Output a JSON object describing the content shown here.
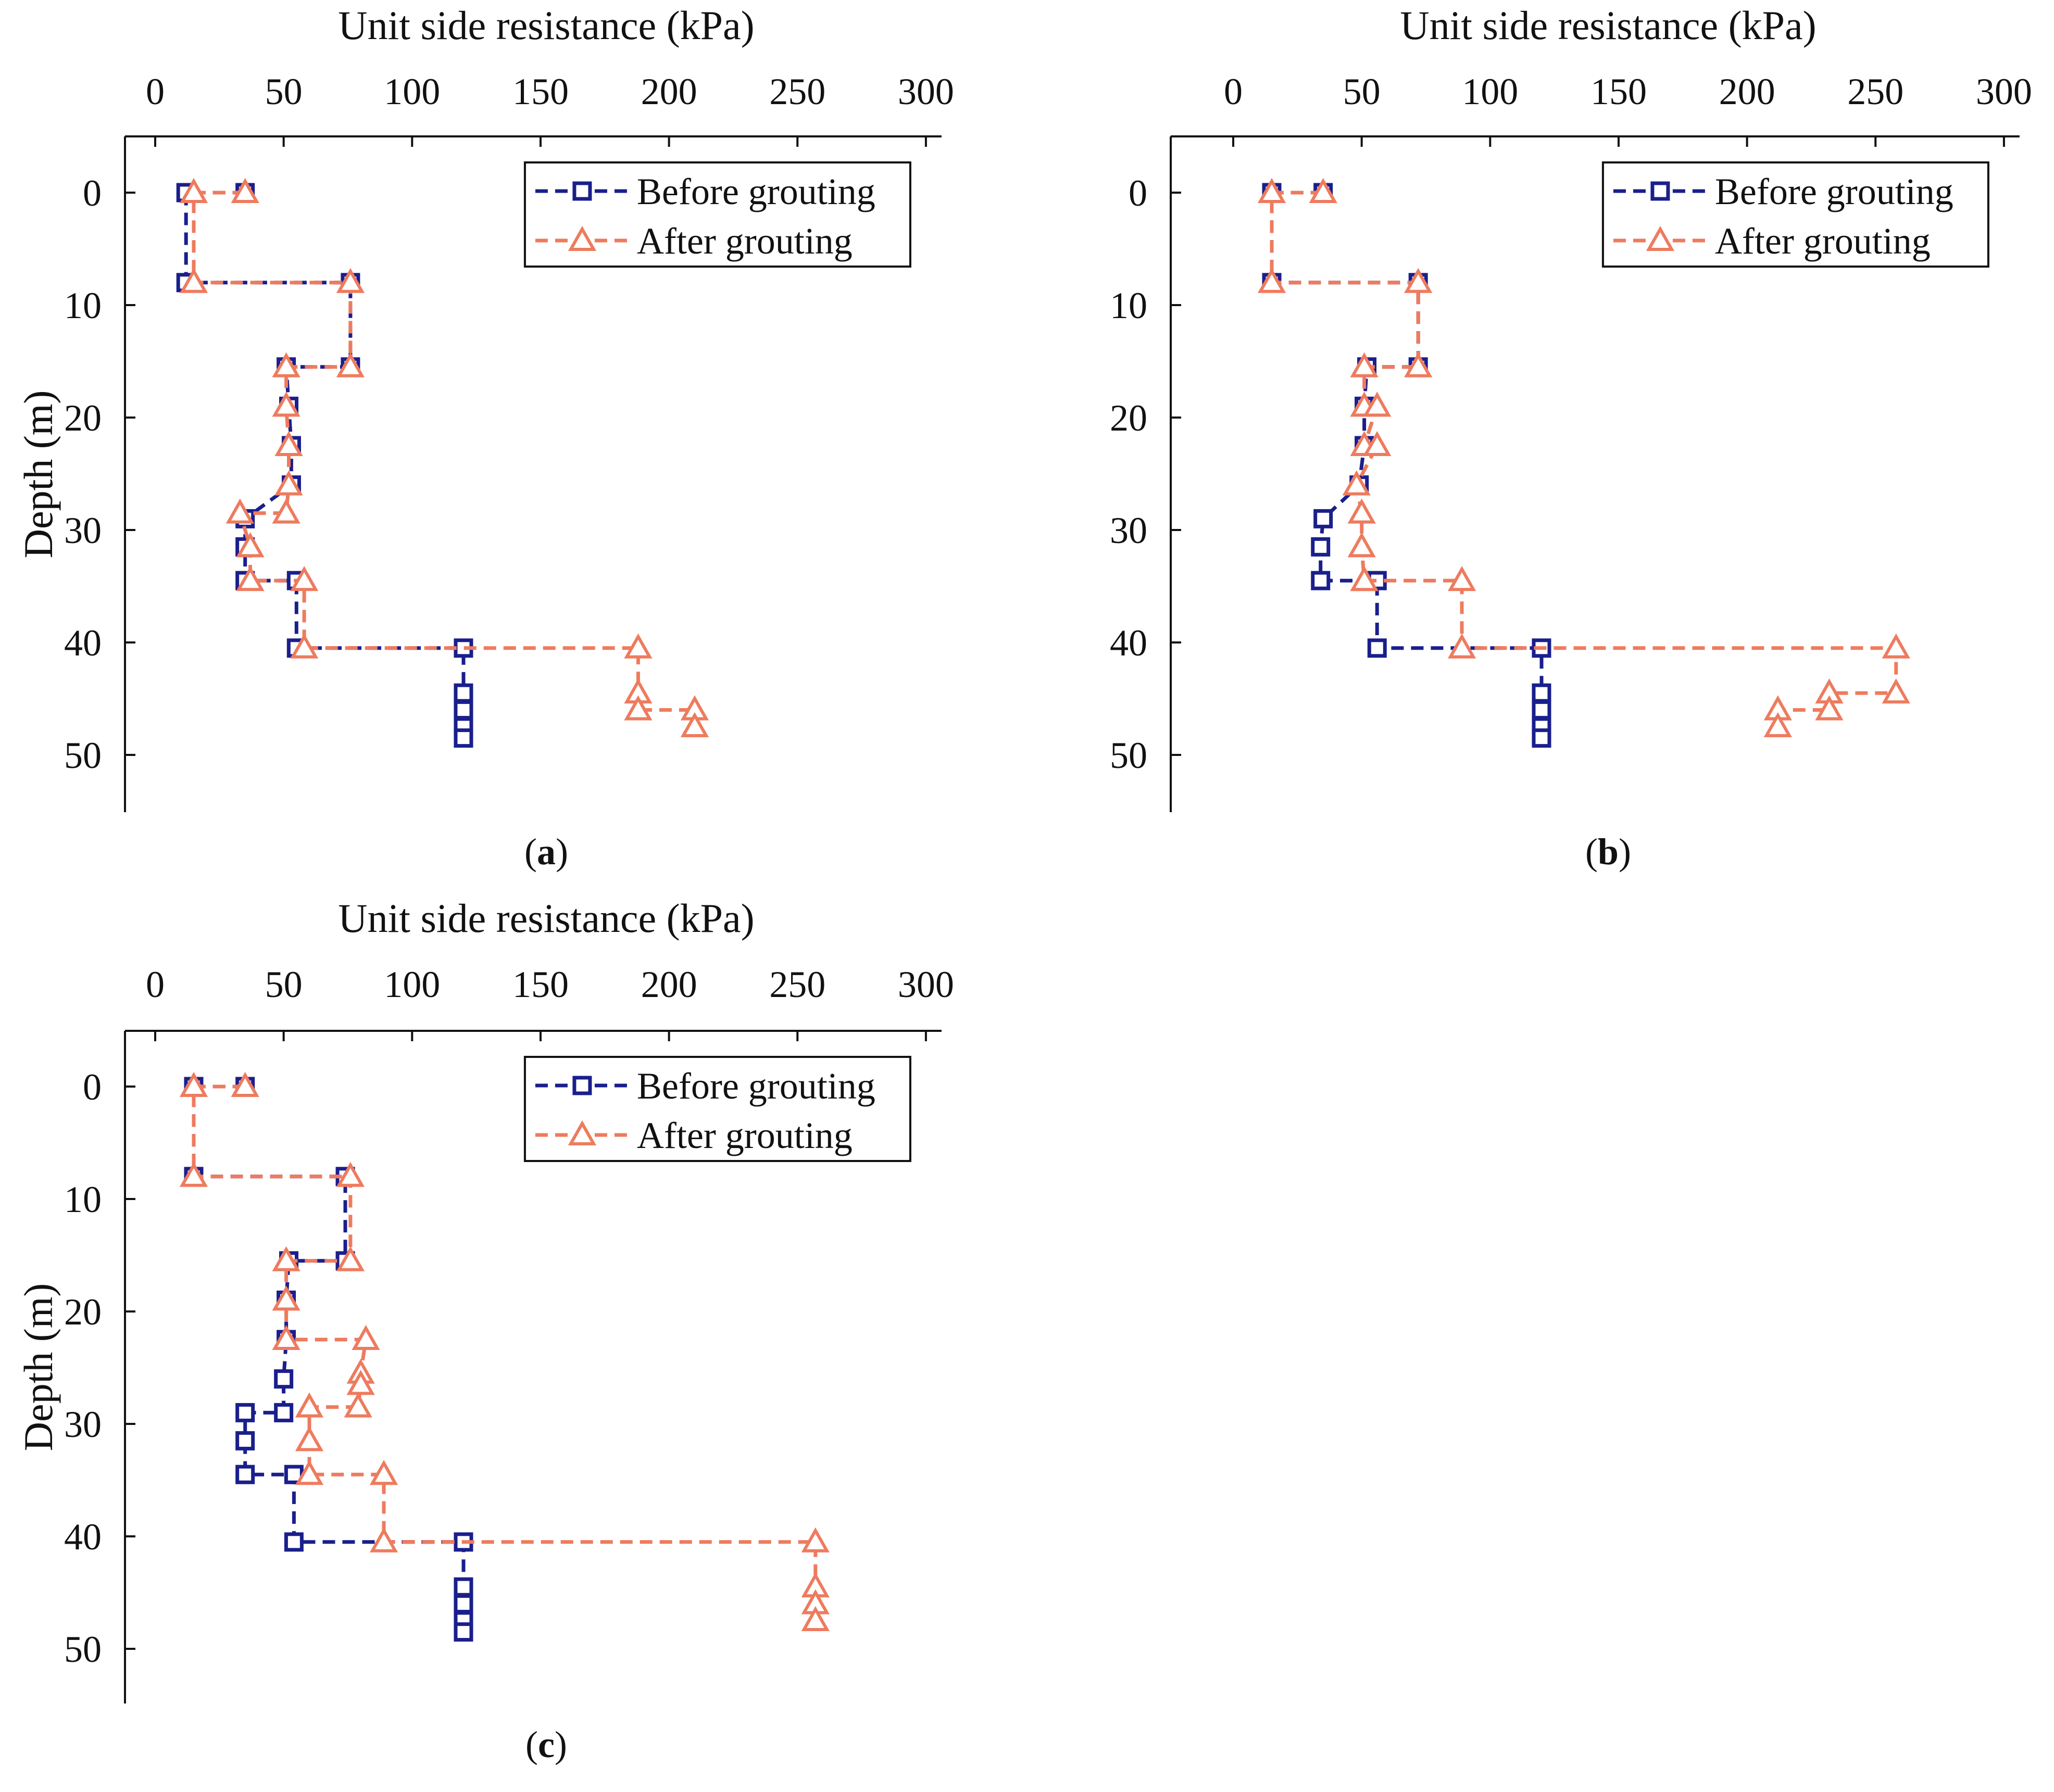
{
  "figure": {
    "colors": {
      "before": "#1a1f8c",
      "after": "#ee7b5e",
      "axis": "#111111"
    }
  },
  "chart_data": [
    {
      "panel": "(a)",
      "panel_letter": "a",
      "type": "line",
      "xlabel": "Unit side resistance (kPa)",
      "ylabel": "Depth (m)",
      "xlim": [
        -10,
        300
      ],
      "ylim": [
        -5,
        55
      ],
      "xticks": [
        "0",
        "50",
        "100",
        "150",
        "200",
        "250",
        "300"
      ],
      "yticks": [
        "0",
        "10",
        "20",
        "30",
        "40",
        "50"
      ],
      "legend": {
        "position": "top-right",
        "entries": [
          "Before grouting",
          "After grouting"
        ]
      },
      "series": [
        {
          "name": "Before grouting",
          "marker": "square",
          "x": [
            35,
            12,
            12,
            76,
            76,
            51,
            52,
            53,
            53,
            35,
            35,
            35,
            55,
            55,
            120,
            120,
            120,
            120,
            120
          ],
          "y": [
            0,
            0,
            8,
            8,
            15.5,
            15.5,
            19,
            22.5,
            26,
            29,
            31.5,
            34.5,
            34.5,
            40.5,
            40.5,
            44.5,
            46,
            47.5,
            48.5
          ]
        },
        {
          "name": "After grouting",
          "marker": "triangle",
          "x": [
            35,
            15,
            15,
            76,
            76,
            51,
            51,
            52,
            52,
            51,
            33,
            37,
            37,
            58,
            58,
            188,
            188,
            188,
            210,
            210
          ],
          "y": [
            0,
            0,
            8,
            8,
            15.5,
            15.5,
            19,
            22.5,
            26,
            28.5,
            28.5,
            31.5,
            34.5,
            34.5,
            40.5,
            40.5,
            44.5,
            46,
            46,
            47.5
          ]
        }
      ]
    },
    {
      "panel": "(b)",
      "panel_letter": "b",
      "type": "line",
      "xlabel": "Unit side resistance (kPa)",
      "ylabel": "Depth (m)",
      "xlim": [
        -10,
        300
      ],
      "ylim": [
        -5,
        55
      ],
      "xticks": [
        "0",
        "50",
        "100",
        "150",
        "200",
        "250",
        "300"
      ],
      "yticks": [
        "0",
        "10",
        "20",
        "30",
        "40",
        "50"
      ],
      "legend": {
        "position": "top-right",
        "entries": [
          "Before grouting",
          "After grouting"
        ]
      },
      "series": [
        {
          "name": "Before grouting",
          "marker": "square",
          "x": [
            35,
            15,
            15,
            72,
            72,
            52,
            51,
            51,
            49,
            35,
            34,
            34,
            56,
            56,
            120,
            120,
            120,
            120,
            120
          ],
          "y": [
            0,
            0,
            8,
            8,
            15.5,
            15.5,
            19,
            22.5,
            26,
            29,
            31.5,
            34.5,
            34.5,
            40.5,
            40.5,
            44.5,
            46,
            47.5,
            48.5
          ]
        },
        {
          "name": "After grouting",
          "marker": "triangle",
          "x": [
            35,
            15,
            15,
            72,
            72,
            51,
            51,
            56,
            51,
            56,
            48,
            50,
            50,
            51,
            51,
            89,
            89,
            258,
            258,
            232,
            232,
            212,
            212
          ],
          "y": [
            0,
            0,
            8,
            8,
            15.5,
            15.5,
            19,
            19,
            22.5,
            22.5,
            26,
            28.5,
            31.5,
            34.5,
            34.5,
            34.5,
            40.5,
            40.5,
            44.5,
            44.5,
            46,
            46,
            47.5
          ]
        }
      ]
    },
    {
      "panel": "(c)",
      "panel_letter": "c",
      "type": "line",
      "xlabel": "Unit side resistance (kPa)",
      "ylabel": "Depth (m)",
      "xlim": [
        -10,
        300
      ],
      "ylim": [
        -5,
        55
      ],
      "xticks": [
        "0",
        "50",
        "100",
        "150",
        "200",
        "250",
        "300"
      ],
      "yticks": [
        "0",
        "10",
        "20",
        "30",
        "40",
        "50"
      ],
      "legend": {
        "position": "top-right",
        "entries": [
          "Before grouting",
          "After grouting"
        ]
      },
      "series": [
        {
          "name": "Before grouting",
          "marker": "square",
          "x": [
            35,
            15,
            15,
            74,
            74,
            52,
            51,
            51,
            50,
            50,
            35,
            35,
            35,
            54,
            54,
            120,
            120,
            120,
            120,
            120
          ],
          "y": [
            0,
            0,
            8,
            8,
            15.5,
            15.5,
            19,
            22.5,
            26,
            29,
            29,
            31.5,
            34.5,
            34.5,
            40.5,
            40.5,
            44.5,
            46,
            47.5,
            48.5
          ]
        },
        {
          "name": "After grouting",
          "marker": "triangle",
          "x": [
            35,
            15,
            15,
            76,
            76,
            51,
            51,
            51,
            82,
            80,
            80,
            79,
            60,
            60,
            60,
            89,
            89,
            257,
            257,
            257,
            257
          ],
          "y": [
            0,
            0,
            8,
            8,
            15.5,
            15.5,
            19,
            22.5,
            22.5,
            25.5,
            26.5,
            28.5,
            28.5,
            31.5,
            34.5,
            34.5,
            40.5,
            40.5,
            44.5,
            46,
            47.5
          ]
        }
      ]
    }
  ]
}
